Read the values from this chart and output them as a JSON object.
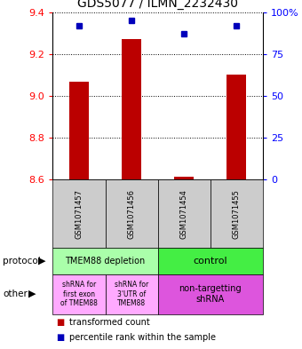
{
  "title": "GDS5077 / ILMN_2232430",
  "samples": [
    "GSM1071457",
    "GSM1071456",
    "GSM1071454",
    "GSM1071455"
  ],
  "red_values": [
    9.07,
    9.27,
    8.615,
    9.1
  ],
  "blue_values": [
    92,
    95,
    87,
    92
  ],
  "ylim_left": [
    8.6,
    9.4
  ],
  "ylim_right": [
    0,
    100
  ],
  "yticks_left": [
    8.6,
    8.8,
    9.0,
    9.2,
    9.4
  ],
  "yticks_right": [
    0,
    25,
    50,
    75,
    100
  ],
  "ytick_labels_right": [
    "0",
    "25",
    "50",
    "75",
    "100%"
  ],
  "bar_color": "#bb0000",
  "dot_color": "#0000bb",
  "protocol_labels": [
    "TMEM88 depletion",
    "control"
  ],
  "protocol_colors": [
    "#aaffaa",
    "#44ee44"
  ],
  "other_labels": [
    "shRNA for\nfirst exon\nof TMEM88",
    "shRNA for\n3'UTR of\nTMEM88",
    "non-targetting\nshRNA"
  ],
  "other_colors": [
    "#ffaaff",
    "#ffaaff",
    "#dd55dd"
  ],
  "legend_red": "transformed count",
  "legend_blue": "percentile rank within the sample",
  "protocol_row_label": "protocol",
  "other_row_label": "other",
  "sample_bg": "#cccccc"
}
